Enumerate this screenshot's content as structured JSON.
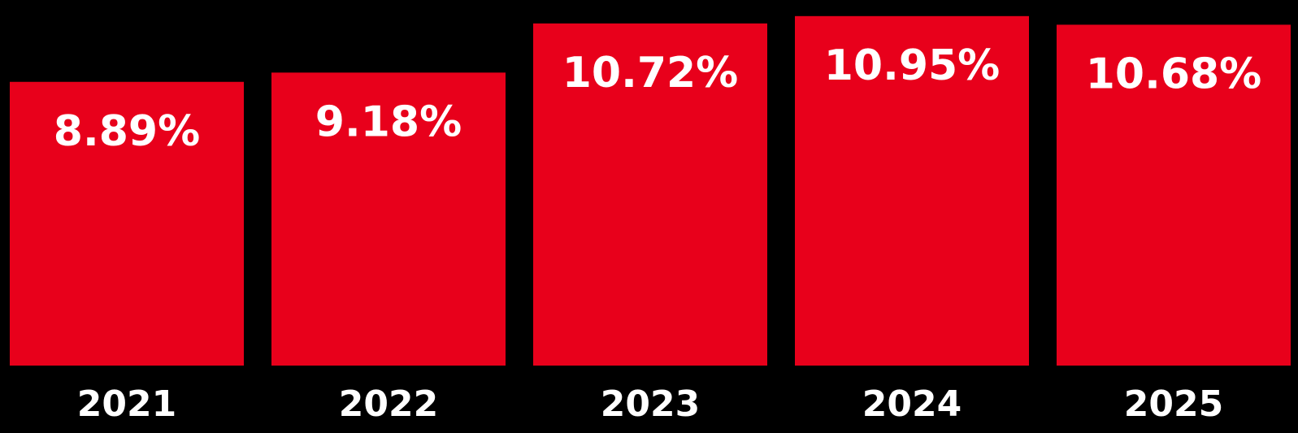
{
  "chart_data": {
    "type": "bar",
    "categories": [
      "2021",
      "2022",
      "2023",
      "2024",
      "2025"
    ],
    "values": [
      8.89,
      9.18,
      10.72,
      10.95,
      10.68
    ],
    "data_labels": [
      "8.89%",
      "9.18%",
      "10.72%",
      "10.95%",
      "10.68%"
    ],
    "title": "",
    "xlabel": "",
    "ylabel": "",
    "ylim": [
      0,
      11.2
    ],
    "grid": false,
    "legend": "none",
    "colors": {
      "background": "#000000",
      "bar": "#e8001b",
      "text": "#ffffff"
    }
  }
}
